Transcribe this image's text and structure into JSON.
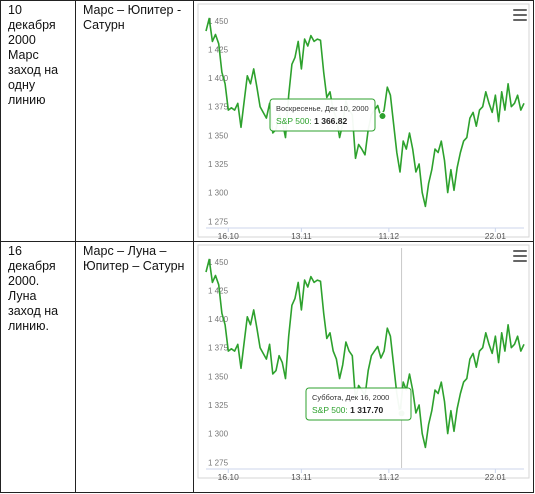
{
  "rows": [
    {
      "date_text": "10\nдекабря\n2000\nМарс\nзаход на\nодну\nлинию",
      "planets": "Марс – Юпитер -\nСатурн",
      "chart": {
        "tooltip_date": "Воскресенье, Дек 10, 2000",
        "tooltip_series": "S&P 500:",
        "tooltip_value": "1 366.82",
        "marker_value": 1366.82,
        "marker_x": 55.5
      }
    },
    {
      "date_text": "16\nдекабря\n2000.\nЛуна\nзаход на\nлинию.",
      "planets": "Марс – Луна –\nЮпитер – Сатурн",
      "chart": {
        "tooltip_date": "Суббота, Дек 16, 2000",
        "tooltip_series": "S&P 500:",
        "tooltip_value": "1 317.70",
        "marker_value": 1317.7,
        "marker_x": 61.5
      }
    }
  ],
  "chart_data": {
    "type": "line",
    "series": [
      {
        "name": "S&P 500",
        "x": [
          0,
          1,
          2,
          3,
          4,
          5,
          6,
          7,
          8,
          9,
          10,
          11,
          12,
          13,
          14,
          15,
          16,
          17,
          18,
          19,
          20,
          21,
          22,
          23,
          24,
          25,
          26,
          27,
          28,
          29,
          30,
          31,
          32,
          33,
          34,
          35,
          36,
          37,
          38,
          39,
          40,
          41,
          42,
          43,
          44,
          45,
          46,
          47,
          48,
          49,
          50,
          51,
          52,
          53,
          54,
          55,
          56,
          57,
          58,
          59,
          60,
          61,
          62,
          63,
          64,
          65,
          66,
          67,
          68,
          69,
          70,
          71,
          72,
          73,
          74,
          75,
          76,
          77,
          78,
          79,
          80,
          81,
          82,
          83,
          84,
          85,
          86,
          87,
          88,
          89,
          90,
          91,
          92,
          93,
          94,
          95,
          96,
          97,
          98,
          99,
          100
        ],
        "values": [
          1441,
          1452,
          1432,
          1438,
          1430,
          1405,
          1395,
          1372,
          1374,
          1372,
          1378,
          1357,
          1380,
          1402,
          1395,
          1408,
          1392,
          1375,
          1370,
          1365,
          1378,
          1352,
          1355,
          1368,
          1362,
          1348,
          1385,
          1412,
          1418,
          1432,
          1408,
          1434,
          1428,
          1437,
          1432,
          1434,
          1433,
          1405,
          1383,
          1388,
          1372,
          1365,
          1348,
          1360,
          1380,
          1372,
          1368,
          1330,
          1342,
          1338,
          1333,
          1355,
          1368,
          1372,
          1376,
          1366,
          1372,
          1392,
          1385,
          1360,
          1335,
          1318,
          1345,
          1338,
          1352,
          1338,
          1318,
          1325,
          1300,
          1288,
          1308,
          1320,
          1338,
          1335,
          1345,
          1328,
          1300,
          1320,
          1302,
          1322,
          1335,
          1345,
          1348,
          1365,
          1370,
          1358,
          1372,
          1375,
          1388,
          1378,
          1370,
          1385,
          1362,
          1388,
          1372,
          1395,
          1375,
          1378,
          1385,
          1372,
          1378
        ]
      }
    ],
    "x_ticks": [
      {
        "label": "16.10",
        "x": 7
      },
      {
        "label": "13.11",
        "x": 30
      },
      {
        "label": "11.12",
        "x": 57.5
      },
      {
        "label": "22.01",
        "x": 91
      }
    ],
    "y_ticks": [
      "1 450",
      "1 425",
      "1 400",
      "1 375",
      "1 350",
      "1 325",
      "1 300",
      "1 275"
    ],
    "y_values": [
      1450,
      1425,
      1400,
      1375,
      1350,
      1325,
      1300,
      1275
    ],
    "ylim": [
      1270,
      1462
    ],
    "line_color": "#2da12d",
    "grid": false,
    "tooltip_border": "#2da12d"
  }
}
